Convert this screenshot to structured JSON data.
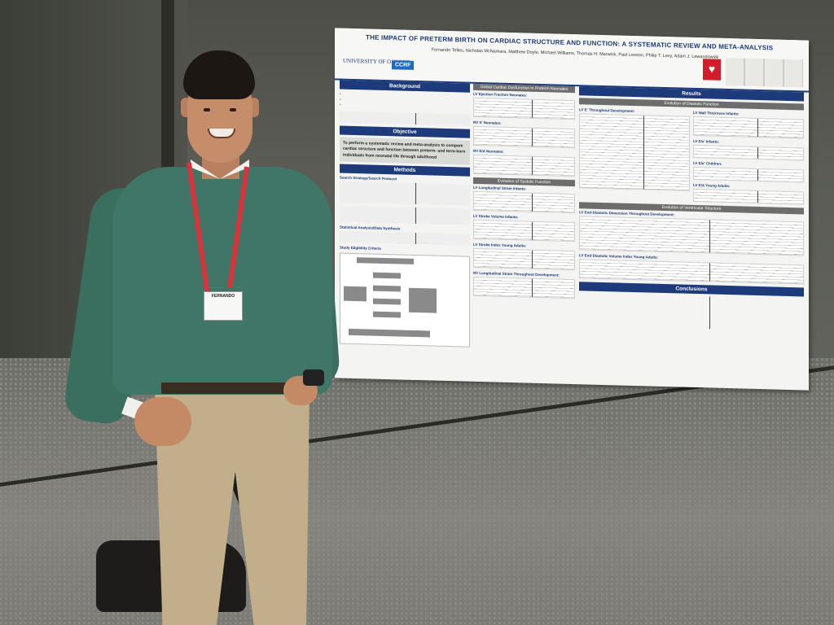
{
  "poster": {
    "title": "THE IMPACT OF PRETERM BIRTH ON CARDIAC STRUCTURE AND FUNCTION: A SYSTEMATIC REVIEW AND META-ANALYSIS",
    "authors": "Fernando Telles, Nicholas McNamara, Matthew Doyle, Michael Williams, Thomas H. Marwick, Paul Leeson, Philip T. Levy, Adam J. Lewandowski",
    "logo_oxford": "UNIVERSITY OF OXFORD",
    "logo_ccrf": "CCRF",
    "sections": {
      "background": "Background",
      "objective": "Objective",
      "methods": "Methods",
      "results": "Results",
      "conclusions": "Conclusions"
    },
    "objective_text": "To perform a systematic review and meta-analysis to compare cardiac structure and function between preterm- and term-born individuals from neonatal life through adulthood",
    "methods_subheads": {
      "search": "Search Strategy/Search Protocol",
      "stats": "Statistical Analysis/Data Synthesis",
      "eligibility": "Study Eligibility Criteria"
    },
    "results_subheads": {
      "global": "Global Cardiac Dysfunction in Preterm Neonates",
      "diastolic": "Evolution of Diastolic Function",
      "systolic": "Evolution of Systolic Function",
      "ventricular": "Evolution of Ventricular Structure"
    },
    "mini_labels": {
      "lv_ef": "LV Ejection Fraction Neonates:",
      "rv_s": "RV S' Neonates:",
      "rv_ea": "RV E/A Neonates:",
      "lv_long": "LV Longitudinal Strain Infants:",
      "lv_stroke": "LV Stroke Volume Infants:",
      "lv_stroke_young": "LV Stroke Index Young Adults:",
      "rv_long": "RV Longitudinal Strain Throughout Development:",
      "lv_e_dev": "LV E' Throughout Development:",
      "lv_wall": "LV Wall Thickness Infants:",
      "lv_ee": "LV E/e' Infants:",
      "lv_ea_children": "LV E/e' Children:",
      "lv_ea_young": "LV E/A Young Adults:",
      "lv_edd": "LV End-Diastolic Dimension Throughout Development:",
      "lv_edv": "LV End-Diastolic Volume Index Young Adults:"
    }
  },
  "badge": {
    "name": "FERNANDO"
  }
}
